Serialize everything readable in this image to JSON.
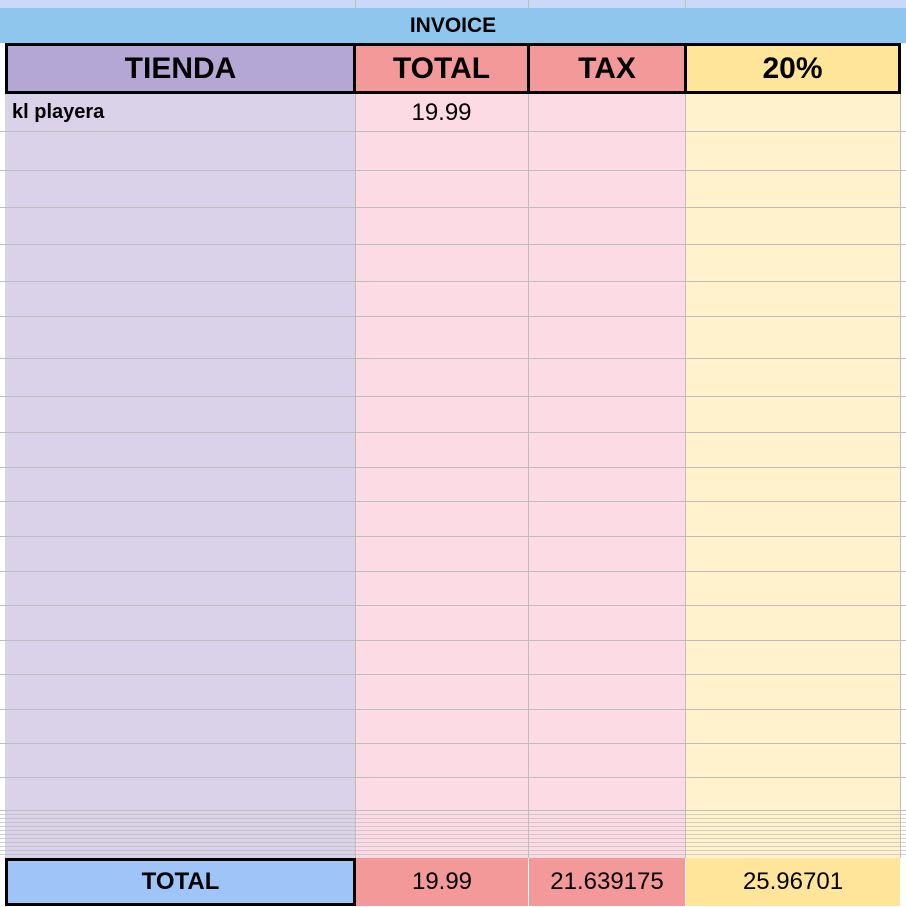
{
  "title": "INVOICE",
  "headers": [
    "TIENDA",
    "TOTAL",
    "TAX",
    "20%"
  ],
  "rows": [
    {
      "tienda": "kl playera",
      "total": 19.99
    }
  ],
  "totals": {
    "label": "TOTAL",
    "total": 19.99,
    "tax": 21.639175,
    "pct": 25.96701
  }
}
